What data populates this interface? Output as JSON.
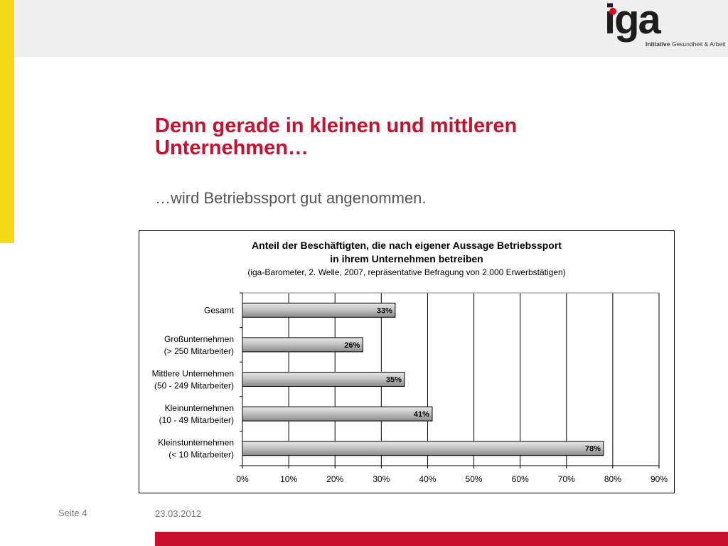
{
  "brand": {
    "logo_text": "iga",
    "tagline_bold": "Initiative",
    "tagline_rest": " Gesundheit & Arbeit",
    "accent": "#c8102e",
    "stripe": "#f5d915"
  },
  "slide": {
    "title": "Denn gerade in kleinen und mittleren Unternehmen…",
    "subtitle": "…wird Betriebssport gut angenommen."
  },
  "chart_data": {
    "type": "bar",
    "orientation": "horizontal",
    "title_line1": "Anteil der Beschäftigten, die nach eigener Aussage Betriebssport",
    "title_line2": "in ihrem Unternehmen betreiben",
    "subtitle": "(iga-Barometer, 2. Welle, 2007, repräsentative Befragung von 2.000 Erwerbstätigen)",
    "categories": [
      [
        "Gesamt"
      ],
      [
        "Großunternehmen",
        "(> 250 Mitarbeiter)"
      ],
      [
        "Mittlere Unternehmen",
        "(50 - 249 Mitarbeiter)"
      ],
      [
        "Kleinunternehmen",
        "(10 - 49 Mitarbeiter)"
      ],
      [
        "Kleinstunternehmen",
        "(< 10 Mitarbeiter)"
      ]
    ],
    "values": [
      33,
      26,
      35,
      41,
      78
    ],
    "data_labels": [
      "33%",
      "26%",
      "35%",
      "41%",
      "78%"
    ],
    "x_ticks": [
      "0%",
      "10%",
      "20%",
      "30%",
      "40%",
      "50%",
      "60%",
      "70%",
      "80%",
      "90%"
    ],
    "xlim": [
      0,
      90
    ],
    "grid": "vertical"
  },
  "footer": {
    "page": "Seite 4",
    "date": "23.03.2012"
  }
}
